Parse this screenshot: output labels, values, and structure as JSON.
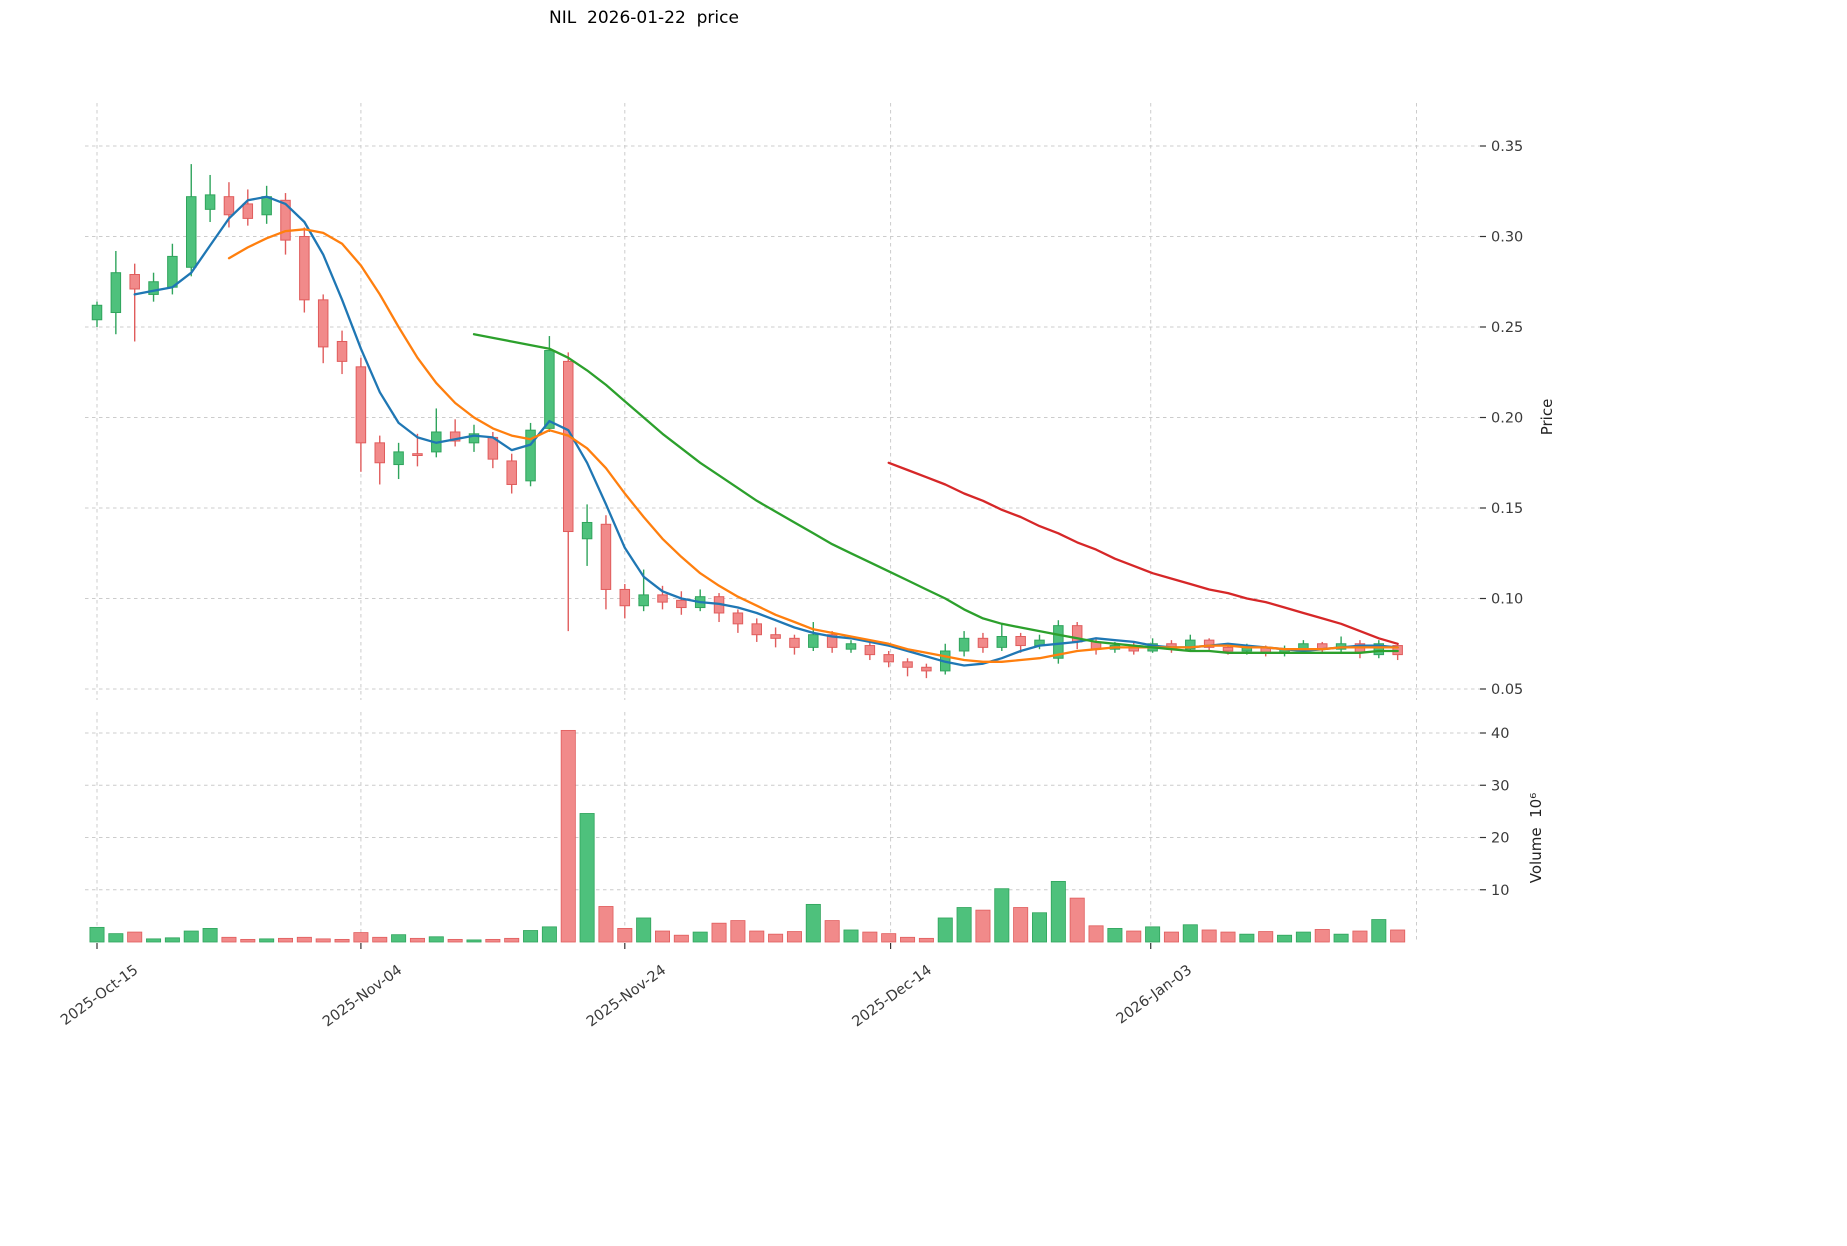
{
  "chart_data": {
    "type": "candlestick",
    "title": "NIL  2026-01-22  price",
    "price_axis": {
      "label": "Price",
      "ticks": [
        "0.35",
        "0.30",
        "0.25",
        "0.20",
        "0.15",
        "0.10",
        "0.05"
      ]
    },
    "volume_axis": {
      "label": "Volume  10⁶",
      "ticks": [
        "40",
        "30",
        "20",
        "10"
      ]
    },
    "x_ticks": [
      {
        "label": "2025-Oct-15",
        "pos": 0
      },
      {
        "label": "2025-Nov-04",
        "pos": 14
      },
      {
        "label": "2025-Nov-24",
        "pos": 28
      },
      {
        "label": "2025-Dec-14",
        "pos": 42.1
      },
      {
        "label": "2026-Jan-03",
        "pos": 55.9
      },
      {
        "label": "",
        "pos": 70
      }
    ],
    "colors": {
      "up": "#4ec17c",
      "up_edge": "#2fa45c",
      "down": "#f18a8a",
      "down_edge": "#e05c5c",
      "grid": "#cccccc"
    },
    "candles": [
      {
        "d": "2025-10-15",
        "o": 0.254,
        "h": 0.264,
        "l": 0.25,
        "c": 0.262,
        "v": 2.8
      },
      {
        "d": "2025-10-16",
        "o": 0.258,
        "h": 0.292,
        "l": 0.246,
        "c": 0.28,
        "v": 1.6
      },
      {
        "d": "2025-10-17",
        "o": 0.279,
        "h": 0.285,
        "l": 0.242,
        "c": 0.271,
        "v": 1.9
      },
      {
        "d": "2025-10-20",
        "o": 0.268,
        "h": 0.28,
        "l": 0.264,
        "c": 0.275,
        "v": 0.6
      },
      {
        "d": "2025-10-21",
        "o": 0.272,
        "h": 0.296,
        "l": 0.268,
        "c": 0.289,
        "v": 0.8
      },
      {
        "d": "2025-10-22",
        "o": 0.283,
        "h": 0.34,
        "l": 0.278,
        "c": 0.322,
        "v": 2.1
      },
      {
        "d": "2025-10-23",
        "o": 0.315,
        "h": 0.334,
        "l": 0.308,
        "c": 0.323,
        "v": 2.6
      },
      {
        "d": "2025-10-24",
        "o": 0.322,
        "h": 0.33,
        "l": 0.305,
        "c": 0.312,
        "v": 0.9
      },
      {
        "d": "2025-10-27",
        "o": 0.318,
        "h": 0.326,
        "l": 0.306,
        "c": 0.31,
        "v": 0.5
      },
      {
        "d": "2025-10-28",
        "o": 0.312,
        "h": 0.328,
        "l": 0.307,
        "c": 0.322,
        "v": 0.6
      },
      {
        "d": "2025-10-29",
        "o": 0.32,
        "h": 0.324,
        "l": 0.29,
        "c": 0.298,
        "v": 0.7
      },
      {
        "d": "2025-10-30",
        "o": 0.3,
        "h": 0.305,
        "l": 0.258,
        "c": 0.265,
        "v": 0.9
      },
      {
        "d": "2025-10-31",
        "o": 0.265,
        "h": 0.268,
        "l": 0.23,
        "c": 0.239,
        "v": 0.6
      },
      {
        "d": "2025-11-03",
        "o": 0.242,
        "h": 0.248,
        "l": 0.224,
        "c": 0.231,
        "v": 0.5
      },
      {
        "d": "2025-11-04",
        "o": 0.228,
        "h": 0.233,
        "l": 0.17,
        "c": 0.186,
        "v": 1.8
      },
      {
        "d": "2025-11-05",
        "o": 0.186,
        "h": 0.19,
        "l": 0.163,
        "c": 0.175,
        "v": 0.9
      },
      {
        "d": "2025-11-06",
        "o": 0.174,
        "h": 0.186,
        "l": 0.166,
        "c": 0.181,
        "v": 1.4
      },
      {
        "d": "2025-11-07",
        "o": 0.18,
        "h": 0.191,
        "l": 0.173,
        "c": 0.179,
        "v": 0.7
      },
      {
        "d": "2025-11-10",
        "o": 0.181,
        "h": 0.205,
        "l": 0.178,
        "c": 0.192,
        "v": 1.0
      },
      {
        "d": "2025-11-11",
        "o": 0.192,
        "h": 0.199,
        "l": 0.184,
        "c": 0.187,
        "v": 0.5
      },
      {
        "d": "2025-11-12",
        "o": 0.186,
        "h": 0.196,
        "l": 0.181,
        "c": 0.191,
        "v": 0.4
      },
      {
        "d": "2025-11-13",
        "o": 0.189,
        "h": 0.192,
        "l": 0.172,
        "c": 0.177,
        "v": 0.5
      },
      {
        "d": "2025-11-14",
        "o": 0.176,
        "h": 0.18,
        "l": 0.158,
        "c": 0.163,
        "v": 0.7
      },
      {
        "d": "2025-11-17",
        "o": 0.165,
        "h": 0.197,
        "l": 0.162,
        "c": 0.193,
        "v": 2.2
      },
      {
        "d": "2025-11-18",
        "o": 0.194,
        "h": 0.245,
        "l": 0.192,
        "c": 0.237,
        "v": 2.9
      },
      {
        "d": "2025-11-19",
        "o": 0.231,
        "h": 0.236,
        "l": 0.082,
        "c": 0.137,
        "v": 40.5
      },
      {
        "d": "2025-11-20",
        "o": 0.133,
        "h": 0.152,
        "l": 0.118,
        "c": 0.142,
        "v": 24.6
      },
      {
        "d": "2025-11-21",
        "o": 0.141,
        "h": 0.146,
        "l": 0.094,
        "c": 0.105,
        "v": 6.8
      },
      {
        "d": "2025-11-24",
        "o": 0.105,
        "h": 0.108,
        "l": 0.089,
        "c": 0.096,
        "v": 2.6
      },
      {
        "d": "2025-11-25",
        "o": 0.096,
        "h": 0.116,
        "l": 0.093,
        "c": 0.102,
        "v": 4.6
      },
      {
        "d": "2025-11-26",
        "o": 0.102,
        "h": 0.107,
        "l": 0.094,
        "c": 0.098,
        "v": 2.1
      },
      {
        "d": "2025-11-27",
        "o": 0.099,
        "h": 0.104,
        "l": 0.091,
        "c": 0.095,
        "v": 1.3
      },
      {
        "d": "2025-11-28",
        "o": 0.095,
        "h": 0.105,
        "l": 0.093,
        "c": 0.101,
        "v": 1.9
      },
      {
        "d": "2025-12-01",
        "o": 0.101,
        "h": 0.103,
        "l": 0.087,
        "c": 0.092,
        "v": 3.6
      },
      {
        "d": "2025-12-02",
        "o": 0.092,
        "h": 0.094,
        "l": 0.081,
        "c": 0.086,
        "v": 4.1
      },
      {
        "d": "2025-12-03",
        "o": 0.086,
        "h": 0.089,
        "l": 0.076,
        "c": 0.08,
        "v": 2.1
      },
      {
        "d": "2025-12-04",
        "o": 0.08,
        "h": 0.084,
        "l": 0.073,
        "c": 0.078,
        "v": 1.5
      },
      {
        "d": "2025-12-05",
        "o": 0.078,
        "h": 0.08,
        "l": 0.069,
        "c": 0.073,
        "v": 2.0
      },
      {
        "d": "2025-12-08",
        "o": 0.073,
        "h": 0.087,
        "l": 0.071,
        "c": 0.08,
        "v": 7.2
      },
      {
        "d": "2025-12-09",
        "o": 0.08,
        "h": 0.082,
        "l": 0.07,
        "c": 0.073,
        "v": 4.1
      },
      {
        "d": "2025-12-10",
        "o": 0.072,
        "h": 0.077,
        "l": 0.07,
        "c": 0.075,
        "v": 2.3
      },
      {
        "d": "2025-12-11",
        "o": 0.074,
        "h": 0.076,
        "l": 0.066,
        "c": 0.069,
        "v": 1.9
      },
      {
        "d": "2025-12-12",
        "o": 0.069,
        "h": 0.071,
        "l": 0.062,
        "c": 0.065,
        "v": 1.6
      },
      {
        "d": "2025-12-15",
        "o": 0.065,
        "h": 0.067,
        "l": 0.057,
        "c": 0.062,
        "v": 0.9
      },
      {
        "d": "2025-12-16",
        "o": 0.062,
        "h": 0.064,
        "l": 0.056,
        "c": 0.06,
        "v": 0.7
      },
      {
        "d": "2025-12-17",
        "o": 0.06,
        "h": 0.075,
        "l": 0.058,
        "c": 0.071,
        "v": 4.6
      },
      {
        "d": "2025-12-18",
        "o": 0.071,
        "h": 0.082,
        "l": 0.068,
        "c": 0.078,
        "v": 6.6
      },
      {
        "d": "2025-12-19",
        "o": 0.078,
        "h": 0.081,
        "l": 0.07,
        "c": 0.073,
        "v": 6.1
      },
      {
        "d": "2025-12-22",
        "o": 0.073,
        "h": 0.086,
        "l": 0.071,
        "c": 0.079,
        "v": 10.2
      },
      {
        "d": "2025-12-23",
        "o": 0.079,
        "h": 0.081,
        "l": 0.07,
        "c": 0.074,
        "v": 6.6
      },
      {
        "d": "2025-12-24",
        "o": 0.074,
        "h": 0.08,
        "l": 0.072,
        "c": 0.077,
        "v": 5.6
      },
      {
        "d": "2025-12-26",
        "o": 0.067,
        "h": 0.088,
        "l": 0.064,
        "c": 0.085,
        "v": 11.6
      },
      {
        "d": "2025-12-29",
        "o": 0.085,
        "h": 0.087,
        "l": 0.072,
        "c": 0.076,
        "v": 8.4
      },
      {
        "d": "2025-12-30",
        "o": 0.076,
        "h": 0.078,
        "l": 0.069,
        "c": 0.072,
        "v": 3.1
      },
      {
        "d": "2025-12-31",
        "o": 0.072,
        "h": 0.076,
        "l": 0.07,
        "c": 0.074,
        "v": 2.6
      },
      {
        "d": "2026-01-02",
        "o": 0.074,
        "h": 0.076,
        "l": 0.069,
        "c": 0.071,
        "v": 2.1
      },
      {
        "d": "2026-01-05",
        "o": 0.071,
        "h": 0.078,
        "l": 0.07,
        "c": 0.075,
        "v": 2.9
      },
      {
        "d": "2026-01-06",
        "o": 0.075,
        "h": 0.077,
        "l": 0.07,
        "c": 0.072,
        "v": 1.9
      },
      {
        "d": "2026-01-07",
        "o": 0.072,
        "h": 0.08,
        "l": 0.071,
        "c": 0.077,
        "v": 3.3
      },
      {
        "d": "2026-01-08",
        "o": 0.077,
        "h": 0.078,
        "l": 0.071,
        "c": 0.073,
        "v": 2.3
      },
      {
        "d": "2026-01-09",
        "o": 0.073,
        "h": 0.075,
        "l": 0.069,
        "c": 0.071,
        "v": 1.9
      },
      {
        "d": "2026-01-12",
        "o": 0.071,
        "h": 0.075,
        "l": 0.069,
        "c": 0.073,
        "v": 1.5
      },
      {
        "d": "2026-01-13",
        "o": 0.073,
        "h": 0.074,
        "l": 0.068,
        "c": 0.07,
        "v": 2.0
      },
      {
        "d": "2026-01-14",
        "o": 0.07,
        "h": 0.074,
        "l": 0.068,
        "c": 0.072,
        "v": 1.3
      },
      {
        "d": "2026-01-15",
        "o": 0.071,
        "h": 0.077,
        "l": 0.07,
        "c": 0.075,
        "v": 1.9
      },
      {
        "d": "2026-01-16",
        "o": 0.075,
        "h": 0.076,
        "l": 0.07,
        "c": 0.072,
        "v": 2.4
      },
      {
        "d": "2026-01-19",
        "o": 0.072,
        "h": 0.079,
        "l": 0.07,
        "c": 0.075,
        "v": 1.5
      },
      {
        "d": "2026-01-20",
        "o": 0.075,
        "h": 0.077,
        "l": 0.067,
        "c": 0.07,
        "v": 2.1
      },
      {
        "d": "2026-01-21",
        "o": 0.069,
        "h": 0.077,
        "l": 0.067,
        "c": 0.075,
        "v": 4.3
      },
      {
        "d": "2026-01-22",
        "o": 0.074,
        "h": 0.075,
        "l": 0.066,
        "c": 0.069,
        "v": 2.3
      }
    ],
    "ma_lines": [
      {
        "name": "blue",
        "color": "#1f77b4",
        "start": 2,
        "values": [
          0.268,
          0.27,
          0.272,
          0.28,
          0.295,
          0.31,
          0.32,
          0.322,
          0.318,
          0.308,
          0.29,
          0.265,
          0.238,
          0.214,
          0.197,
          0.189,
          0.186,
          0.188,
          0.19,
          0.189,
          0.182,
          0.185,
          0.198,
          0.193,
          0.175,
          0.152,
          0.128,
          0.112,
          0.104,
          0.1,
          0.098,
          0.097,
          0.095,
          0.092,
          0.088,
          0.084,
          0.081,
          0.079,
          0.078,
          0.076,
          0.074,
          0.071,
          0.068,
          0.065,
          0.063,
          0.064,
          0.067,
          0.071,
          0.074,
          0.075,
          0.076,
          0.078,
          0.077,
          0.076,
          0.074,
          0.073,
          0.073,
          0.074,
          0.075,
          0.074,
          0.073,
          0.072,
          0.071,
          0.072,
          0.073,
          0.074,
          0.074,
          0.073
        ]
      },
      {
        "name": "orange",
        "color": "#ff7f0e",
        "start": 7,
        "values": [
          0.288,
          0.294,
          0.299,
          0.303,
          0.304,
          0.302,
          0.296,
          0.284,
          0.268,
          0.25,
          0.233,
          0.219,
          0.208,
          0.2,
          0.194,
          0.19,
          0.188,
          0.193,
          0.19,
          0.183,
          0.172,
          0.158,
          0.145,
          0.133,
          0.123,
          0.114,
          0.107,
          0.101,
          0.096,
          0.091,
          0.087,
          0.083,
          0.081,
          0.079,
          0.077,
          0.075,
          0.072,
          0.07,
          0.068,
          0.066,
          0.065,
          0.065,
          0.066,
          0.067,
          0.069,
          0.071,
          0.072,
          0.073,
          0.073,
          0.073,
          0.073,
          0.073,
          0.074,
          0.074,
          0.073,
          0.073,
          0.072,
          0.072,
          0.072,
          0.073,
          0.073,
          0.073,
          0.073
        ]
      },
      {
        "name": "green",
        "color": "#2ca02c",
        "start": 20,
        "values": [
          0.246,
          0.244,
          0.242,
          0.24,
          0.238,
          0.233,
          0.226,
          0.218,
          0.209,
          0.2,
          0.191,
          0.183,
          0.175,
          0.168,
          0.161,
          0.154,
          0.148,
          0.142,
          0.136,
          0.13,
          0.125,
          0.12,
          0.115,
          0.11,
          0.105,
          0.1,
          0.094,
          0.089,
          0.086,
          0.084,
          0.082,
          0.08,
          0.078,
          0.076,
          0.075,
          0.074,
          0.073,
          0.072,
          0.071,
          0.071,
          0.07,
          0.07,
          0.07,
          0.07,
          0.07,
          0.07,
          0.07,
          0.07,
          0.071,
          0.071
        ]
      },
      {
        "name": "red",
        "color": "#d62728",
        "start": 42,
        "values": [
          0.175,
          0.171,
          0.167,
          0.163,
          0.158,
          0.154,
          0.149,
          0.145,
          0.14,
          0.136,
          0.131,
          0.127,
          0.122,
          0.118,
          0.114,
          0.111,
          0.108,
          0.105,
          0.103,
          0.1,
          0.098,
          0.095,
          0.092,
          0.089,
          0.086,
          0.082,
          0.078,
          0.075
        ]
      }
    ]
  }
}
